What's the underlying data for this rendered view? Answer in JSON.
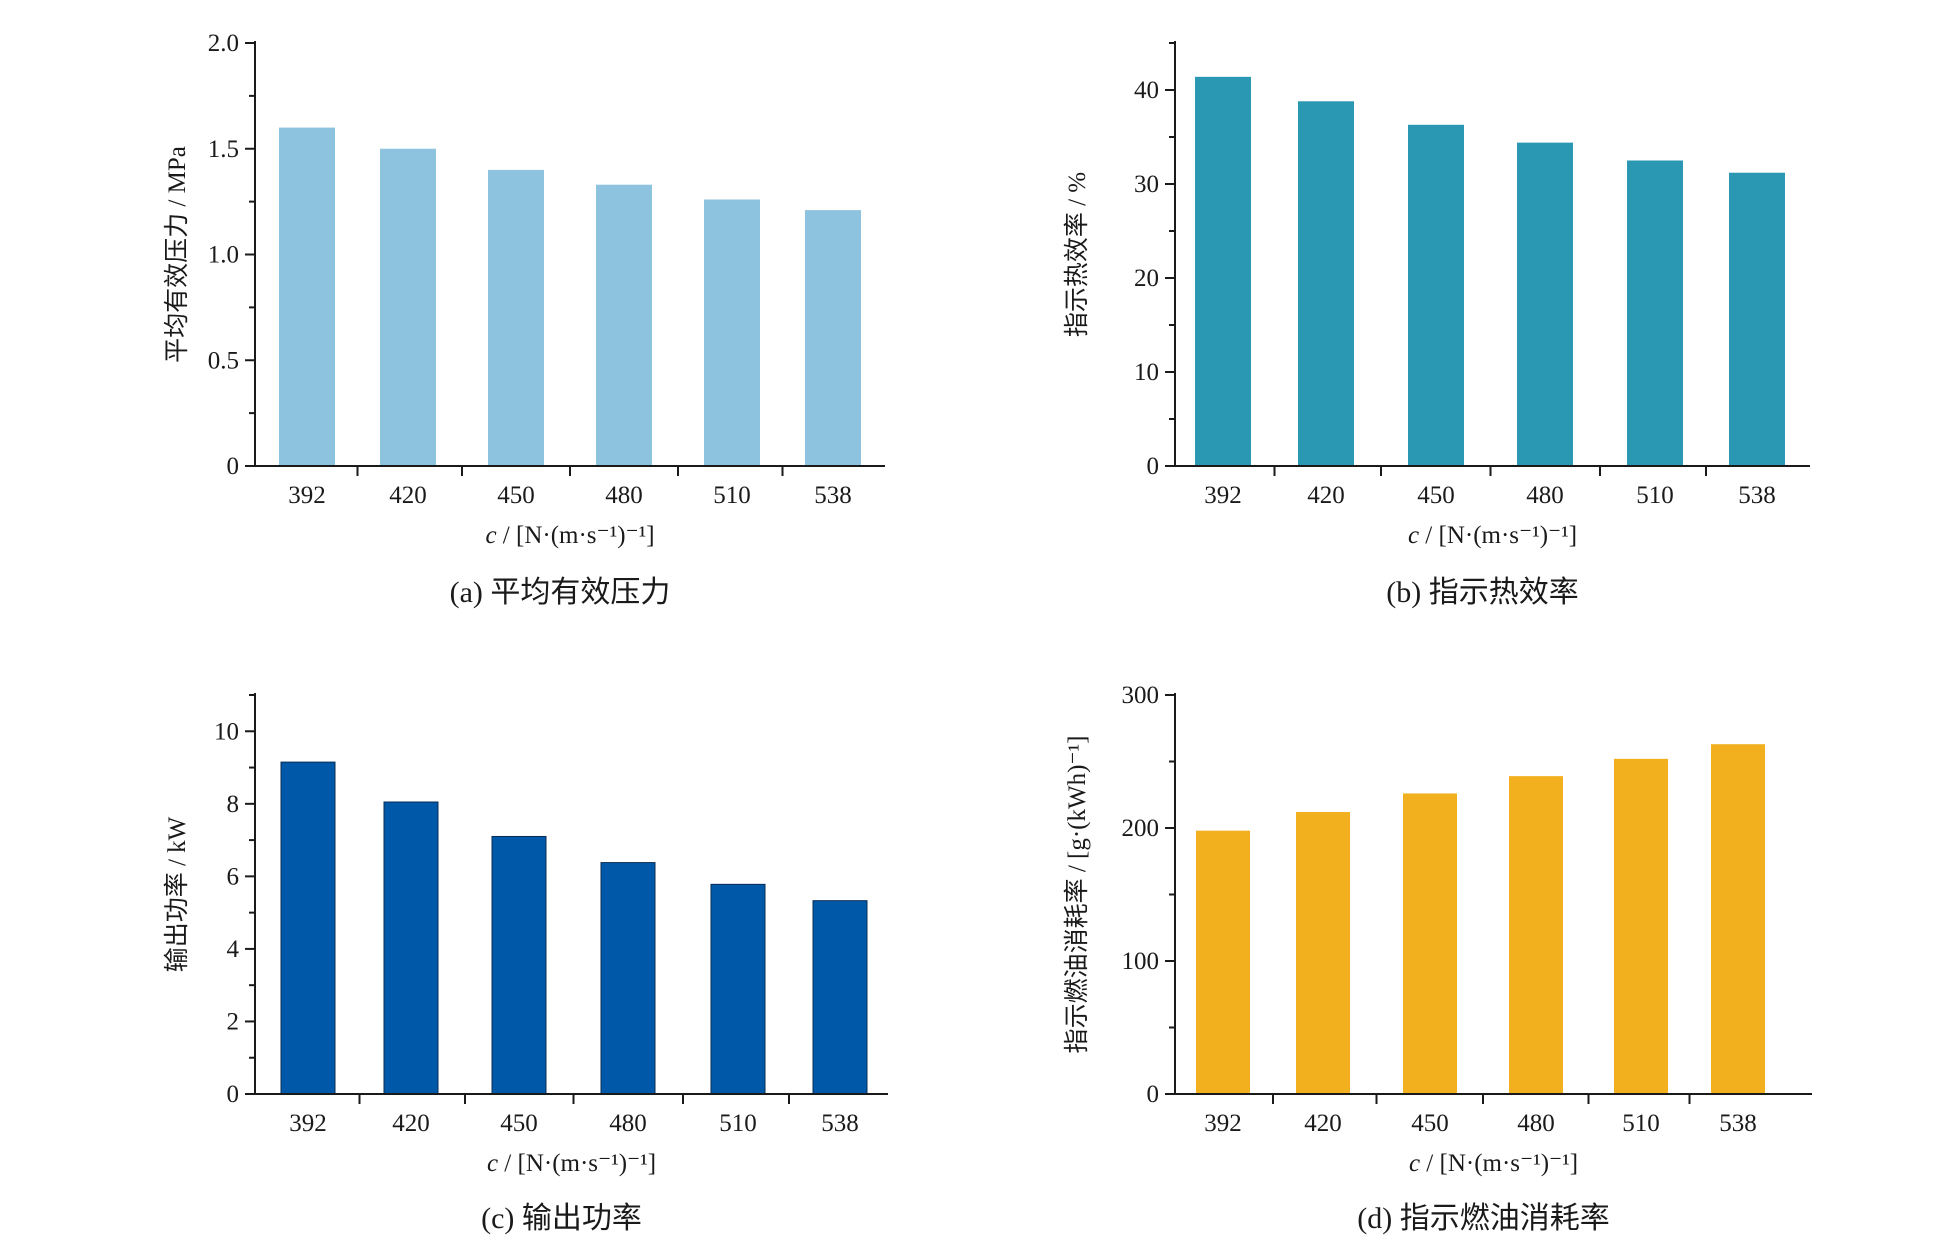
{
  "chart_data": [
    {
      "type": "bar",
      "panel": "a",
      "caption": "(a)  平均有效压力",
      "ylabel": "平均有效压力 / MPa",
      "xlabel_italic": "c",
      "xlabel_rest": " / [N·(m·s⁻¹)⁻¹]",
      "categories": [
        "392",
        "420",
        "450",
        "480",
        "510",
        "538"
      ],
      "values": [
        1.6,
        1.5,
        1.4,
        1.33,
        1.26,
        1.21
      ],
      "ylim": [
        0,
        2.0
      ],
      "yticks": [
        0,
        0.5,
        1.0,
        1.5,
        2.0
      ],
      "ytick_labels": [
        "0",
        "0.5",
        "1.0",
        "1.5",
        "2.0"
      ],
      "color": "#8ec3df"
    },
    {
      "type": "bar",
      "panel": "b",
      "caption": "(b)  指示热效率",
      "ylabel": "指示热效率 / %",
      "xlabel_italic": "c",
      "xlabel_rest": " / [N·(m·s⁻¹)⁻¹]",
      "categories": [
        "392",
        "420",
        "450",
        "480",
        "510",
        "538"
      ],
      "values": [
        41.4,
        38.8,
        36.3,
        34.4,
        32.5,
        31.2
      ],
      "ylim": [
        0,
        45
      ],
      "yticks": [
        0,
        10,
        20,
        30,
        40
      ],
      "ytick_labels": [
        "0",
        "10",
        "20",
        "30",
        "40"
      ],
      "color": "#2a97b3"
    },
    {
      "type": "bar",
      "panel": "c",
      "caption": "(c)  输出功率",
      "ylabel": "输出功率 / kW",
      "xlabel_italic": "c",
      "xlabel_rest": " / [N·(m·s⁻¹)⁻¹]",
      "categories": [
        "392",
        "420",
        "450",
        "480",
        "510",
        "538"
      ],
      "values": [
        9.15,
        8.05,
        7.1,
        6.38,
        5.78,
        5.33
      ],
      "ylim": [
        0,
        11
      ],
      "yticks": [
        0,
        2,
        4,
        6,
        8,
        10
      ],
      "ytick_labels": [
        "0",
        "2",
        "4",
        "6",
        "8",
        "10"
      ],
      "color": "#0058a8"
    },
    {
      "type": "bar",
      "panel": "d",
      "caption": "(d)  指示燃油消耗率",
      "ylabel": "指示燃油消耗率 / [g·(kWh)⁻¹]",
      "xlabel_italic": "c",
      "xlabel_rest": " / [N·(m·s⁻¹)⁻¹]",
      "categories": [
        "392",
        "420",
        "450",
        "480",
        "510",
        "538"
      ],
      "values": [
        198,
        212,
        226,
        239,
        252,
        263
      ],
      "ylim": [
        0,
        300
      ],
      "yticks": [
        0,
        100,
        200,
        300
      ],
      "ytick_labels": [
        "0",
        "100",
        "200",
        "300"
      ],
      "color": "#f2b01e"
    }
  ]
}
